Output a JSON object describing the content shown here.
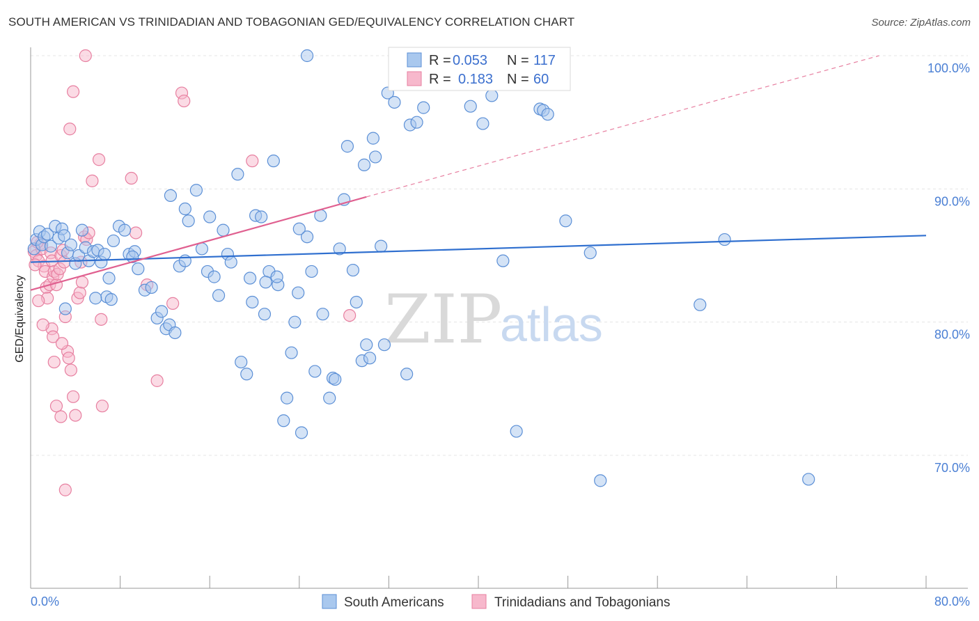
{
  "title": "SOUTH AMERICAN VS TRINIDADIAN AND TOBAGONIAN GED/EQUIVALENCY CORRELATION CHART",
  "source": "Source: ZipAtlas.com",
  "watermark": {
    "zip": "ZIP",
    "atlas": "atlas"
  },
  "colors": {
    "blue_fill": "#a9c8ee",
    "blue_stroke": "#5b8fd6",
    "blue_line": "#2f6fcf",
    "pink_fill": "#f7b8cc",
    "pink_stroke": "#e77fa0",
    "pink_line": "#e06090",
    "tick_text": "#4a7fd4",
    "grid": "#e4e4e4"
  },
  "legend": {
    "rows": [
      {
        "r_label": "R = ",
        "r_value": "0.053",
        "n_label": "N = ",
        "n_value": "117"
      },
      {
        "r_label": "R = ",
        "r_value": "0.183",
        "n_label": "N = ",
        "n_value": "60"
      }
    ]
  },
  "chart_data": {
    "type": "scatter",
    "title": "SOUTH AMERICAN VS TRINIDADIAN AND TOBAGONIAN GED/EQUIVALENCY CORRELATION CHART",
    "xlabel": "",
    "ylabel": "GED/Equivalency",
    "xlim": [
      0,
      80
    ],
    "ylim": [
      60,
      102
    ],
    "x_tick_labels": [
      "0.0%",
      "80.0%"
    ],
    "y_ticks": [
      70,
      80,
      90,
      100
    ],
    "y_tick_labels": [
      "70.0%",
      "80.0%",
      "90.0%",
      "100.0%"
    ],
    "grid": true,
    "legend_position": "top-center",
    "series": [
      {
        "name": "South Americans",
        "color": "#a9c8ee",
        "r": 0.053,
        "n": 117,
        "trend": {
          "x": [
            0,
            80
          ],
          "y": [
            84.5,
            86.5
          ]
        },
        "points": [
          [
            0.3,
            85.5
          ],
          [
            0.5,
            86.2
          ],
          [
            0.8,
            86.8
          ],
          [
            1.0,
            85.8
          ],
          [
            1.2,
            86.4
          ],
          [
            1.5,
            86.6
          ],
          [
            1.8,
            85.7
          ],
          [
            2.2,
            87.2
          ],
          [
            2.5,
            86.3
          ],
          [
            2.8,
            87.0
          ],
          [
            3.0,
            86.5
          ],
          [
            3.3,
            85.2
          ],
          [
            3.6,
            85.8
          ],
          [
            4.0,
            84.4
          ],
          [
            4.3,
            85.0
          ],
          [
            4.6,
            86.9
          ],
          [
            4.9,
            85.6
          ],
          [
            5.2,
            84.6
          ],
          [
            5.6,
            85.3
          ],
          [
            6.0,
            85.4
          ],
          [
            6.3,
            84.5
          ],
          [
            6.6,
            85.1
          ],
          [
            7.0,
            83.3
          ],
          [
            7.4,
            86.1
          ],
          [
            7.9,
            87.2
          ],
          [
            8.4,
            86.9
          ],
          [
            8.8,
            85.1
          ],
          [
            9.3,
            85.3
          ],
          [
            9.6,
            84.0
          ],
          [
            10.2,
            82.4
          ],
          [
            10.8,
            82.6
          ],
          [
            11.3,
            80.3
          ],
          [
            11.7,
            80.8
          ],
          [
            12.1,
            79.5
          ],
          [
            12.4,
            79.8
          ],
          [
            12.9,
            79.2
          ],
          [
            13.3,
            84.2
          ],
          [
            13.8,
            88.5
          ],
          [
            14.1,
            87.6
          ],
          [
            14.8,
            89.9
          ],
          [
            15.3,
            85.5
          ],
          [
            15.8,
            83.8
          ],
          [
            16.4,
            83.4
          ],
          [
            16.8,
            82.0
          ],
          [
            17.2,
            86.9
          ],
          [
            17.6,
            85.1
          ],
          [
            17.9,
            84.5
          ],
          [
            18.5,
            91.1
          ],
          [
            18.8,
            77.0
          ],
          [
            19.3,
            76.1
          ],
          [
            19.6,
            83.3
          ],
          [
            19.8,
            81.5
          ],
          [
            20.1,
            88.0
          ],
          [
            20.6,
            87.9
          ],
          [
            20.9,
            80.6
          ],
          [
            21.3,
            83.8
          ],
          [
            21.7,
            92.1
          ],
          [
            22.1,
            82.8
          ],
          [
            22.0,
            83.4
          ],
          [
            22.6,
            72.6
          ],
          [
            22.9,
            74.3
          ],
          [
            23.3,
            77.7
          ],
          [
            23.6,
            80.0
          ],
          [
            23.9,
            82.2
          ],
          [
            24.2,
            71.7
          ],
          [
            24.7,
            86.4
          ],
          [
            25.1,
            83.8
          ],
          [
            25.4,
            76.3
          ],
          [
            25.9,
            88.0
          ],
          [
            26.1,
            80.6
          ],
          [
            26.7,
            74.3
          ],
          [
            27.0,
            75.8
          ],
          [
            27.2,
            75.7
          ],
          [
            28.0,
            89.2
          ],
          [
            28.3,
            93.2
          ],
          [
            28.8,
            83.9
          ],
          [
            29.1,
            81.5
          ],
          [
            29.6,
            77.1
          ],
          [
            29.8,
            91.8
          ],
          [
            30.0,
            78.3
          ],
          [
            30.3,
            77.3
          ],
          [
            30.6,
            93.8
          ],
          [
            30.8,
            92.4
          ],
          [
            31.3,
            85.7
          ],
          [
            31.6,
            78.3
          ],
          [
            31.9,
            97.2
          ],
          [
            32.5,
            96.5
          ],
          [
            33.6,
            76.1
          ],
          [
            33.9,
            94.8
          ],
          [
            34.5,
            95.0
          ],
          [
            35.1,
            96.1
          ],
          [
            35.7,
            100.0
          ],
          [
            39.3,
            96.2
          ],
          [
            40.4,
            94.9
          ],
          [
            41.2,
            97.0
          ],
          [
            41.9,
            99.9
          ],
          [
            42.2,
            84.6
          ],
          [
            43.4,
            71.8
          ],
          [
            45.5,
            96.0
          ],
          [
            45.8,
            95.9
          ],
          [
            46.2,
            95.6
          ],
          [
            47.8,
            87.6
          ],
          [
            50.0,
            85.2
          ],
          [
            50.9,
            68.1
          ],
          [
            59.8,
            81.3
          ],
          [
            62.0,
            86.2
          ],
          [
            69.5,
            68.2
          ],
          [
            24.7,
            100.0
          ],
          [
            34.8,
            100.0
          ],
          [
            40.7,
            100.0
          ],
          [
            12.5,
            89.5
          ],
          [
            9.1,
            84.9
          ],
          [
            3.1,
            81.0
          ],
          [
            6.8,
            81.9
          ],
          [
            5.8,
            81.8
          ],
          [
            7.2,
            81.7
          ],
          [
            16.0,
            87.9
          ],
          [
            24.0,
            87.0
          ],
          [
            21.0,
            83.0
          ],
          [
            27.6,
            85.5
          ],
          [
            13.8,
            84.6
          ]
        ]
      },
      {
        "name": "Trinidadians and Tobagonians",
        "color": "#f7b8cc",
        "r": 0.183,
        "n": 60,
        "trend": {
          "x": [
            0,
            30
          ],
          "y": [
            82.4,
            89.4
          ]
        },
        "trend_extension": {
          "x": [
            30,
            75.8
          ],
          "y": [
            89.4,
            100
          ]
        },
        "points": [
          [
            0.3,
            85.3
          ],
          [
            0.5,
            85.0
          ],
          [
            0.7,
            84.6
          ],
          [
            0.9,
            85.9
          ],
          [
            1.0,
            85.5
          ],
          [
            1.2,
            84.2
          ],
          [
            1.3,
            83.8
          ],
          [
            1.4,
            82.6
          ],
          [
            1.5,
            81.8
          ],
          [
            1.7,
            82.8
          ],
          [
            1.8,
            85.2
          ],
          [
            1.9,
            84.6
          ],
          [
            2.0,
            83.4
          ],
          [
            2.1,
            83.8
          ],
          [
            2.3,
            82.8
          ],
          [
            2.4,
            83.6
          ],
          [
            2.6,
            84.0
          ],
          [
            2.7,
            85.0
          ],
          [
            2.9,
            85.4
          ],
          [
            3.0,
            84.5
          ],
          [
            3.1,
            80.4
          ],
          [
            3.3,
            77.8
          ],
          [
            3.4,
            77.3
          ],
          [
            3.6,
            76.4
          ],
          [
            3.8,
            74.4
          ],
          [
            4.0,
            73.0
          ],
          [
            4.2,
            81.8
          ],
          [
            4.4,
            82.2
          ],
          [
            4.6,
            83.0
          ],
          [
            4.8,
            86.4
          ],
          [
            5.0,
            86.2
          ],
          [
            5.2,
            86.7
          ],
          [
            5.5,
            90.6
          ],
          [
            6.1,
            92.2
          ],
          [
            6.3,
            80.2
          ],
          [
            6.4,
            73.7
          ],
          [
            9.0,
            90.8
          ],
          [
            9.4,
            86.7
          ],
          [
            10.4,
            82.8
          ],
          [
            11.3,
            75.6
          ],
          [
            12.7,
            81.4
          ],
          [
            13.5,
            97.2
          ],
          [
            13.7,
            96.6
          ],
          [
            19.8,
            92.1
          ],
          [
            28.5,
            80.5
          ],
          [
            1.9,
            79.5
          ],
          [
            2.1,
            77.0
          ],
          [
            2.3,
            73.7
          ],
          [
            2.7,
            72.9
          ],
          [
            3.1,
            67.4
          ],
          [
            3.5,
            94.5
          ],
          [
            3.8,
            97.3
          ],
          [
            4.9,
            100.0
          ],
          [
            2.0,
            78.9
          ],
          [
            2.8,
            78.4
          ],
          [
            4.5,
            84.5
          ],
          [
            0.7,
            81.6
          ],
          [
            1.1,
            79.8
          ],
          [
            0.4,
            84.3
          ],
          [
            0.6,
            86.0
          ]
        ]
      }
    ]
  },
  "bottom_legend": {
    "items": [
      "South Americans",
      "Trinidadians and Tobagonians"
    ]
  },
  "axis": {
    "x_left_label": "0.0%",
    "x_right_label": "80.0%",
    "y_label": "GED/Equivalency"
  }
}
